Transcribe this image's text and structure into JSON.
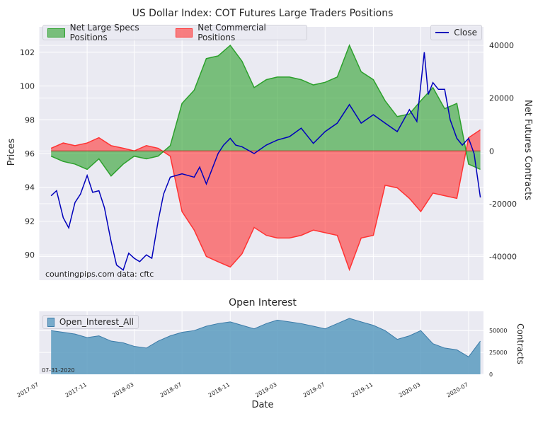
{
  "chart_data": [
    {
      "type": "area",
      "title": "US Dollar Index: COT Futures Large Traders Positions",
      "ylabel": "Prices",
      "y2label": "Net Futures Contracts",
      "ylim": [
        88.5,
        103.5
      ],
      "y2lim": [
        -49000,
        47000
      ],
      "yticks": [
        "90",
        "92",
        "94",
        "96",
        "98",
        "100",
        "102"
      ],
      "y2ticks": [
        "-40000",
        "-20000",
        "0",
        "20000",
        "40000"
      ],
      "legend": [
        "Net Large Specs Positions",
        "Net Commercial Positions"
      ],
      "legend2": [
        "Close"
      ],
      "watermark": "countingpips.com    data: cftc",
      "colors": {
        "specs": "#2ca02c",
        "commercial": "#ff3333",
        "close": "#0000bb"
      },
      "series": [
        {
          "name": "Net Large Specs Positions",
          "axis": "right",
          "x": [
            "2017-08-01",
            "2017-09-01",
            "2017-10-01",
            "2017-11-01",
            "2017-12-01",
            "2018-01-01",
            "2018-02-01",
            "2018-03-01",
            "2018-04-01",
            "2018-05-01",
            "2018-06-01",
            "2018-07-01",
            "2018-08-01",
            "2018-09-01",
            "2018-10-01",
            "2018-11-01",
            "2018-12-01",
            "2019-01-01",
            "2019-02-01",
            "2019-03-01",
            "2019-04-01",
            "2019-05-01",
            "2019-06-01",
            "2019-07-01",
            "2019-08-01",
            "2019-09-01",
            "2019-10-01",
            "2019-11-01",
            "2019-12-01",
            "2020-01-01",
            "2020-02-01",
            "2020-03-01",
            "2020-04-01",
            "2020-05-01",
            "2020-06-01",
            "2020-07-01",
            "2020-07-31"
          ],
          "values": [
            -2000,
            -4000,
            -5000,
            -7000,
            -3000,
            -9500,
            -5000,
            -2000,
            -3000,
            -2000,
            2000,
            18000,
            23000,
            35000,
            36000,
            40000,
            34000,
            24000,
            27000,
            28000,
            28000,
            27000,
            25000,
            26000,
            28000,
            40000,
            30000,
            27000,
            19000,
            13000,
            14000,
            19000,
            24000,
            16000,
            18000,
            -5000,
            -7000
          ]
        },
        {
          "name": "Net Commercial Positions",
          "axis": "right",
          "x": [
            "2017-08-01",
            "2017-09-01",
            "2017-10-01",
            "2017-11-01",
            "2017-12-01",
            "2018-01-01",
            "2018-02-01",
            "2018-03-01",
            "2018-04-01",
            "2018-05-01",
            "2018-06-01",
            "2018-07-01",
            "2018-08-01",
            "2018-09-01",
            "2018-10-01",
            "2018-11-01",
            "2018-12-01",
            "2019-01-01",
            "2019-02-01",
            "2019-03-01",
            "2019-04-01",
            "2019-05-01",
            "2019-06-01",
            "2019-07-01",
            "2019-08-01",
            "2019-09-01",
            "2019-10-01",
            "2019-11-01",
            "2019-12-01",
            "2020-01-01",
            "2020-02-01",
            "2020-03-01",
            "2020-04-01",
            "2020-05-01",
            "2020-06-01",
            "2020-07-01",
            "2020-07-31"
          ],
          "values": [
            1000,
            3000,
            2000,
            3000,
            5000,
            2000,
            1000,
            0,
            2000,
            1000,
            -2000,
            -23000,
            -30000,
            -40000,
            -42000,
            -44000,
            -39000,
            -29000,
            -32000,
            -33000,
            -33000,
            -32000,
            -30000,
            -31000,
            -32000,
            -45000,
            -33000,
            -32000,
            -13000,
            -14000,
            -18000,
            -23000,
            -16000,
            -17000,
            -18000,
            5000,
            8000
          ]
        },
        {
          "name": "Close",
          "axis": "left",
          "x": [
            "2017-08-01",
            "2017-08-15",
            "2017-09-01",
            "2017-09-15",
            "2017-10-01",
            "2017-10-15",
            "2017-11-01",
            "2017-11-15",
            "2017-12-01",
            "2017-12-15",
            "2018-01-01",
            "2018-01-15",
            "2018-02-01",
            "2018-02-15",
            "2018-03-01",
            "2018-03-15",
            "2018-04-01",
            "2018-04-15",
            "2018-05-01",
            "2018-05-15",
            "2018-06-01",
            "2018-07-01",
            "2018-08-01",
            "2018-08-15",
            "2018-09-01",
            "2018-10-01",
            "2018-10-15",
            "2018-11-01",
            "2018-11-15",
            "2018-12-01",
            "2019-01-01",
            "2019-02-01",
            "2019-03-01",
            "2019-04-01",
            "2019-05-01",
            "2019-06-01",
            "2019-07-01",
            "2019-08-01",
            "2019-09-01",
            "2019-10-01",
            "2019-11-01",
            "2019-12-01",
            "2020-01-01",
            "2020-02-01",
            "2020-02-20",
            "2020-03-10",
            "2020-03-20",
            "2020-04-01",
            "2020-04-15",
            "2020-05-01",
            "2020-05-15",
            "2020-06-01",
            "2020-06-15",
            "2020-07-01",
            "2020-07-15",
            "2020-07-31"
          ],
          "values": [
            93.5,
            93.8,
            92.2,
            91.6,
            93.1,
            93.6,
            94.7,
            93.7,
            93.8,
            92.8,
            90.8,
            89.4,
            89.1,
            90.1,
            89.8,
            89.6,
            90.0,
            89.8,
            92.0,
            93.6,
            94.6,
            94.8,
            94.6,
            95.2,
            94.2,
            96.0,
            96.5,
            96.9,
            96.5,
            96.4,
            96.0,
            96.5,
            96.8,
            97.0,
            97.5,
            96.6,
            97.3,
            97.8,
            98.9,
            97.8,
            98.3,
            97.8,
            97.3,
            98.6,
            97.9,
            102.0,
            99.5,
            100.2,
            99.8,
            99.8,
            98.0,
            96.9,
            96.5,
            96.9,
            96.0,
            93.4
          ]
        }
      ]
    },
    {
      "type": "area",
      "title": "Open Interest",
      "ylabel": "Contracts",
      "ylim": [
        0,
        72000
      ],
      "yticks": [
        "0",
        "25000",
        "50000"
      ],
      "legend": [
        "Open_Interest_All"
      ],
      "date_label": "07-31-2020",
      "xlabel": "Date",
      "xticks": [
        "2017-07",
        "2017-11",
        "2018-03",
        "2018-07",
        "2018-11",
        "2019-03",
        "2019-07",
        "2019-11",
        "2020-03",
        "2020-07"
      ],
      "colors": {
        "oi": "#5b9bc0"
      },
      "series": [
        {
          "name": "Open_Interest_All",
          "x": [
            "2017-08-01",
            "2017-09-01",
            "2017-10-01",
            "2017-11-01",
            "2017-12-01",
            "2018-01-01",
            "2018-02-01",
            "2018-03-01",
            "2018-04-01",
            "2018-05-01",
            "2018-06-01",
            "2018-07-01",
            "2018-08-01",
            "2018-09-01",
            "2018-10-01",
            "2018-11-01",
            "2018-12-01",
            "2019-01-01",
            "2019-02-01",
            "2019-03-01",
            "2019-04-01",
            "2019-05-01",
            "2019-06-01",
            "2019-07-01",
            "2019-08-01",
            "2019-09-01",
            "2019-10-01",
            "2019-11-01",
            "2019-12-01",
            "2020-01-01",
            "2020-02-01",
            "2020-03-01",
            "2020-04-01",
            "2020-05-01",
            "2020-06-01",
            "2020-07-01",
            "2020-07-31"
          ],
          "values": [
            50000,
            48000,
            46000,
            42000,
            44000,
            38000,
            36000,
            32000,
            30000,
            38000,
            44000,
            48000,
            50000,
            55000,
            58000,
            60000,
            56000,
            52000,
            58000,
            62000,
            60000,
            58000,
            55000,
            52000,
            58000,
            64000,
            60000,
            56000,
            50000,
            40000,
            44000,
            50000,
            35000,
            30000,
            28000,
            20000,
            38000
          ]
        }
      ]
    }
  ]
}
